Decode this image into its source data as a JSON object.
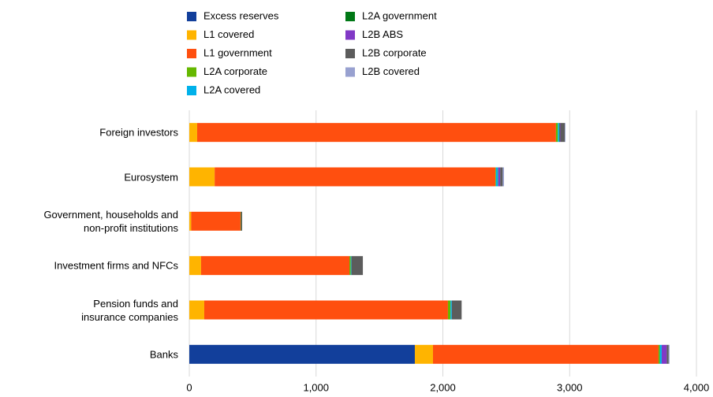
{
  "chart_data": {
    "type": "stacked-bar-horizontal",
    "categories": [
      "Foreign investors",
      "Eurosystem",
      "Government, households and\nnon-profit institutions",
      "Investment firms and NFCs",
      "Pension funds and\ninsurance companies",
      "Banks"
    ],
    "series": [
      {
        "name": "Excess reserves",
        "color": "#123f9b",
        "values": [
          0,
          0,
          0,
          0,
          0,
          1779
        ]
      },
      {
        "name": "L1 covered",
        "color": "#ffb400",
        "values": [
          62,
          200,
          15,
          93,
          118,
          143
        ]
      },
      {
        "name": "L1 government",
        "color": "#ff4f0f",
        "values": [
          2830,
          2214,
          389,
          1170,
          1922,
          1779
        ]
      },
      {
        "name": "L2A corporate",
        "color": "#65b800",
        "values": [
          15,
          5,
          3,
          10,
          20,
          10
        ]
      },
      {
        "name": "L2A covered",
        "color": "#00b1ea",
        "values": [
          10,
          15,
          0,
          5,
          10,
          15
        ]
      },
      {
        "name": "L2A government",
        "color": "#007816",
        "values": [
          5,
          3,
          0,
          1,
          0,
          0
        ]
      },
      {
        "name": "L2B ABS",
        "color": "#8139c6",
        "values": [
          5,
          15,
          0,
          0,
          0,
          40
        ]
      },
      {
        "name": "L2B corporate",
        "color": "#5c5c5c",
        "values": [
          35,
          20,
          10,
          90,
          78,
          15
        ]
      },
      {
        "name": "L2B covered",
        "color": "#98a1d0",
        "values": [
          5,
          10,
          0,
          0,
          0,
          7
        ]
      }
    ],
    "xlim": [
      0,
      4000
    ],
    "xticks": [
      0,
      {
        "value": 1000,
        "label": "1,000"
      },
      {
        "value": 2000,
        "label": "2,000"
      },
      {
        "value": 3000,
        "label": "3,000"
      },
      {
        "value": 4000,
        "label": "4,000"
      }
    ],
    "grid": true
  }
}
